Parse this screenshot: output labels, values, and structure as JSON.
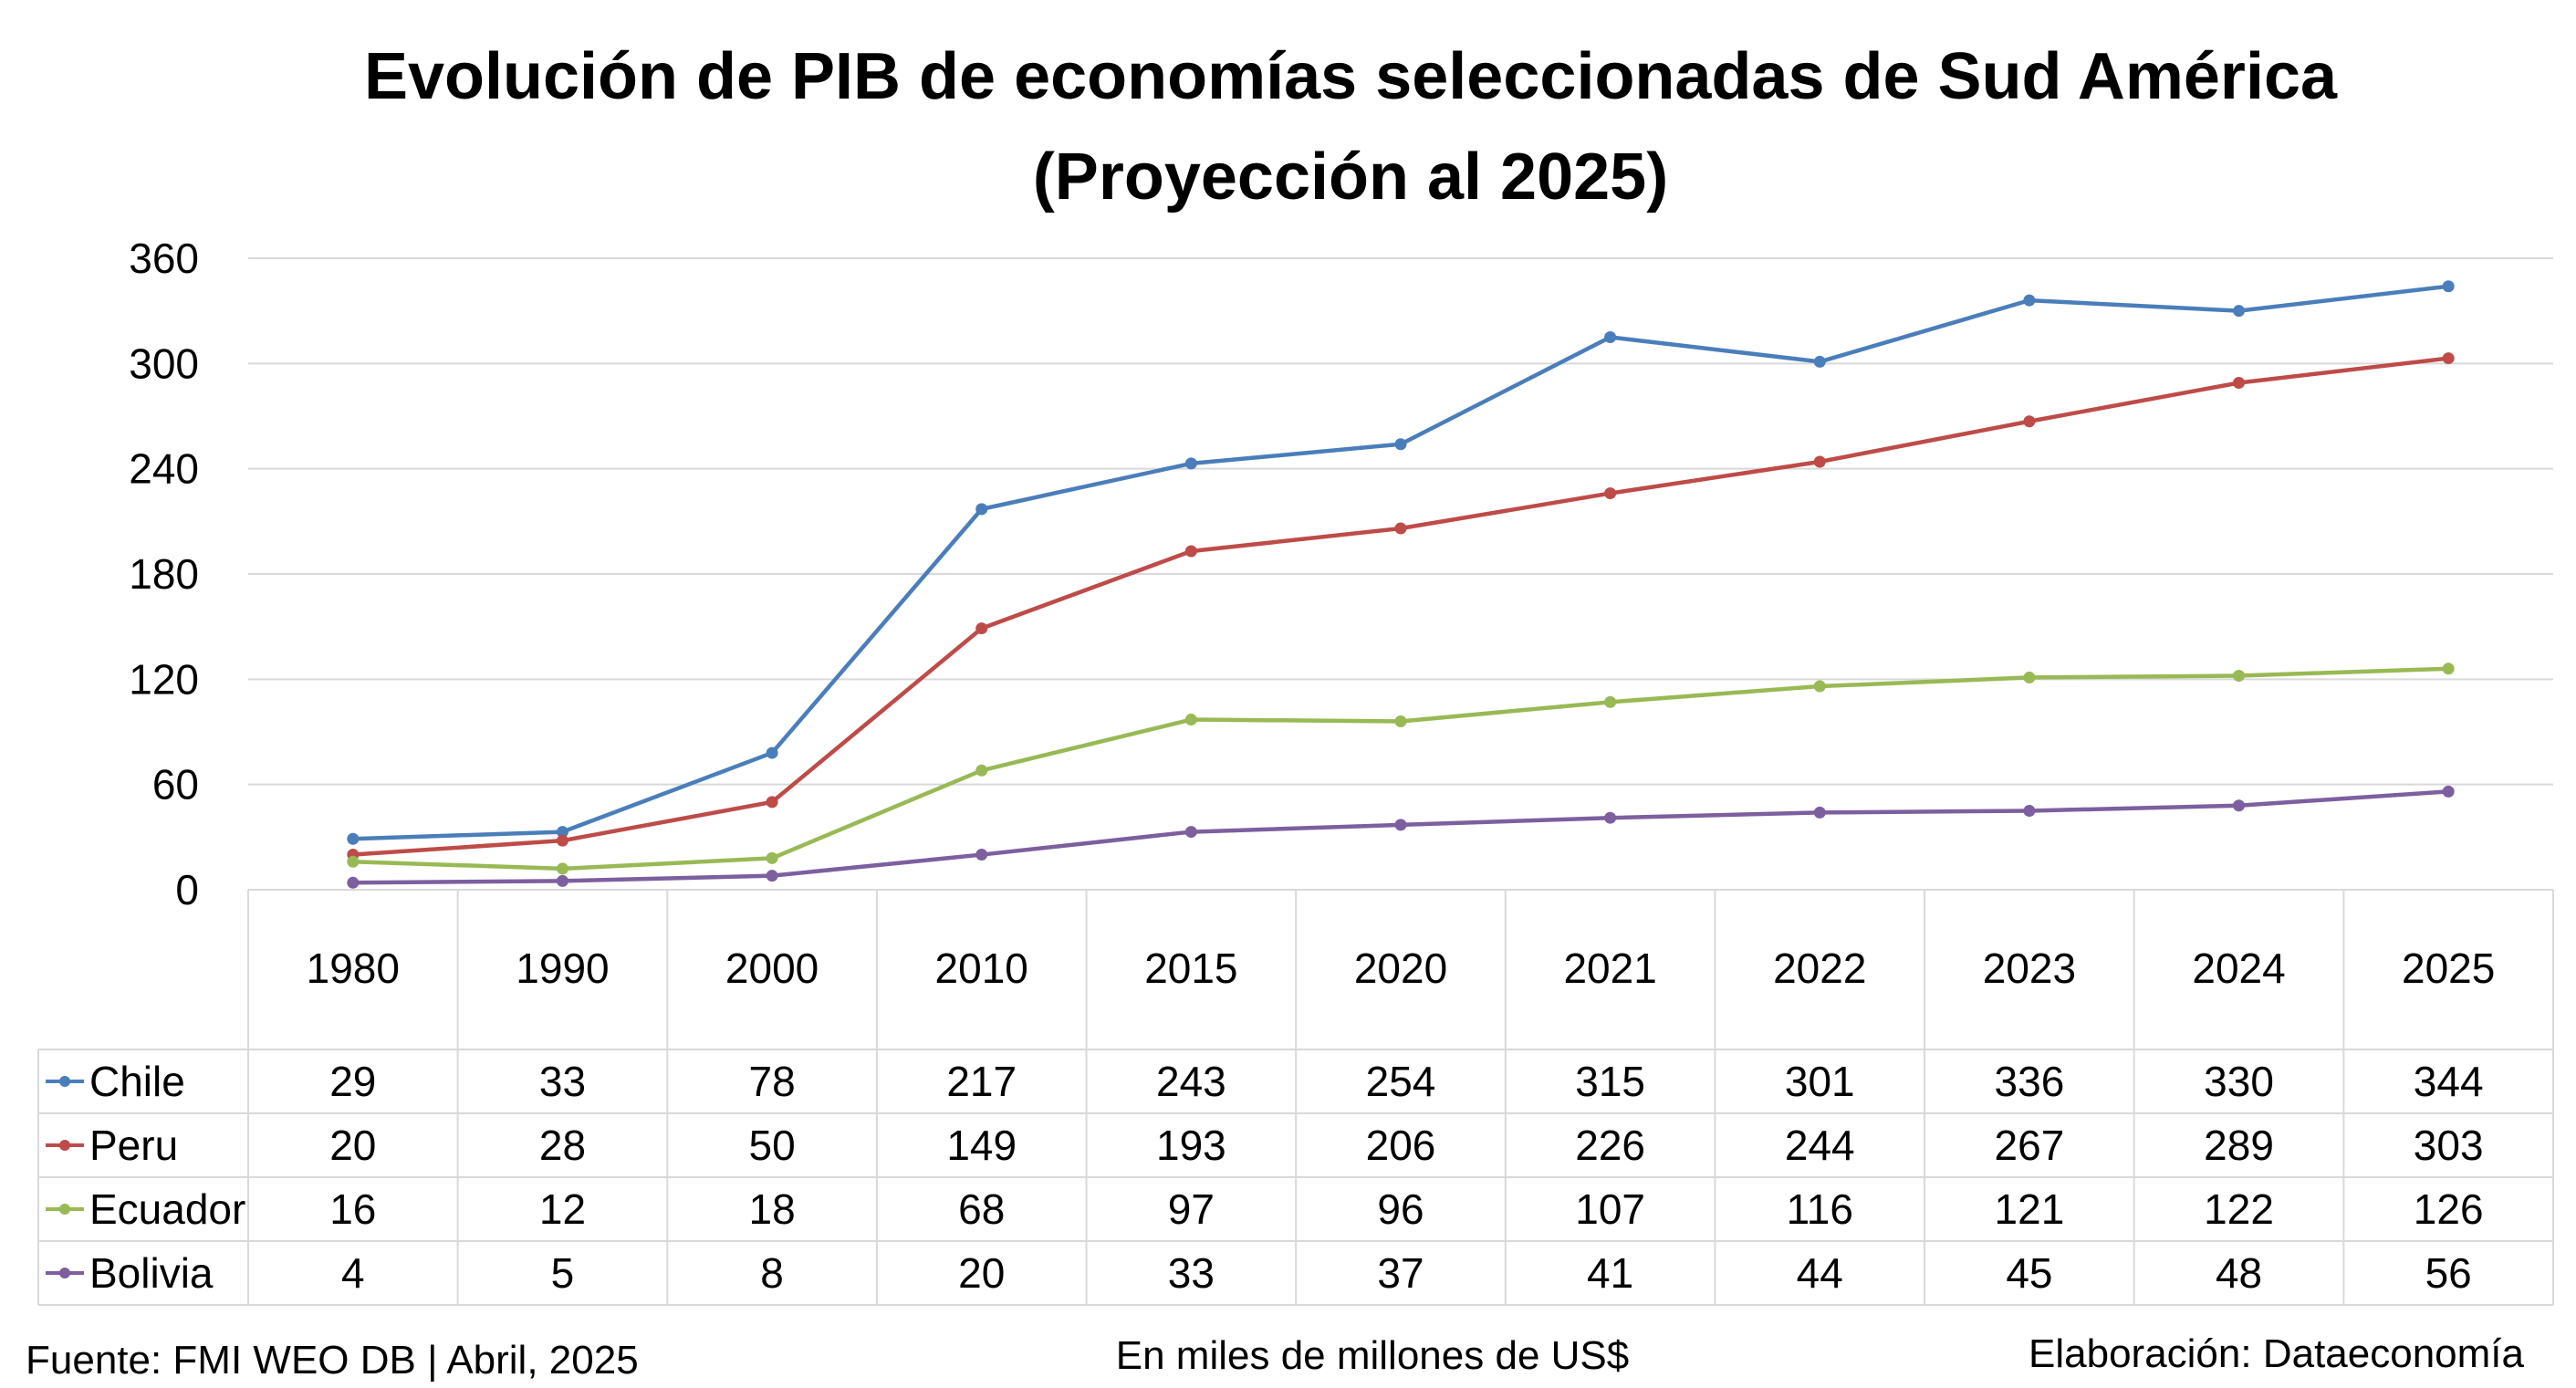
{
  "chart_data": {
    "type": "line",
    "title": "Evolución de PIB de economías seleccionadas de Sud América",
    "subtitle": "(Proyección al 2025)",
    "categories": [
      "1980",
      "1990",
      "2000",
      "2010",
      "2015",
      "2020",
      "2021",
      "2022",
      "2023",
      "2024",
      "2025"
    ],
    "y_ticks": [
      "0",
      "60",
      "120",
      "180",
      "240",
      "300",
      "360"
    ],
    "ylim": [
      0,
      360
    ],
    "grid": true,
    "legend_placement": "data-table-left",
    "series": [
      {
        "name": "Chile",
        "color": "#4a7ebb",
        "values": [
          29,
          33,
          78,
          217,
          243,
          254,
          315,
          301,
          336,
          330,
          344
        ]
      },
      {
        "name": "Peru",
        "color": "#be4b48",
        "values": [
          20,
          28,
          50,
          149,
          193,
          206,
          226,
          244,
          267,
          289,
          303
        ]
      },
      {
        "name": "Ecuador",
        "color": "#98b954",
        "values": [
          16,
          12,
          18,
          68,
          97,
          96,
          107,
          116,
          121,
          122,
          126
        ]
      },
      {
        "name": "Bolivia",
        "color": "#7d5fa0",
        "values": [
          4,
          5,
          8,
          20,
          33,
          37,
          41,
          44,
          45,
          48,
          56
        ]
      }
    ]
  },
  "footer": {
    "source": "Fuente: FMI WEO DB | Abril, 2025",
    "units": "En miles de millones de US$",
    "credit": "Elaboración: Dataeconomía"
  }
}
